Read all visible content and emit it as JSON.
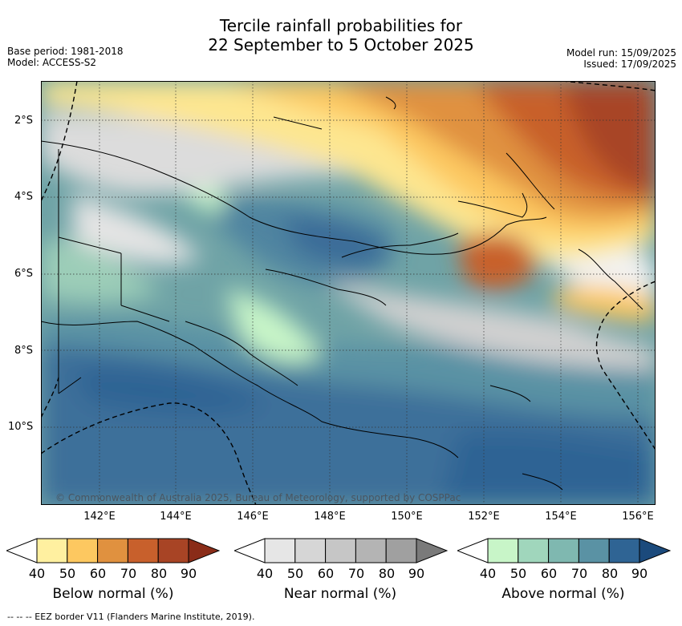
{
  "title_line1": "Tercile rainfall probabilities for",
  "title_line2": "22 September to 5 October 2025",
  "base_period": "Base period: 1981-2018",
  "model": "Model: ACCESS-S2",
  "model_run": "Model run: 15/09/2025",
  "issued": "Issued: 17/09/2025",
  "lat_labels": [
    "2°S",
    "4°S",
    "6°S",
    "8°S",
    "10°S"
  ],
  "lon_labels": [
    "142°E",
    "144°E",
    "146°E",
    "148°E",
    "150°E",
    "152°E",
    "154°E",
    "156°E"
  ],
  "copyright": "© Commonwealth of Australia 2025, Bureau of Meteorology, supported by COSPPac",
  "colorbars": {
    "below": {
      "label": "Below normal (%)",
      "ticks": [
        "40",
        "50",
        "60",
        "70",
        "80",
        "90"
      ],
      "colors": [
        "#fff0a0",
        "#fdc860",
        "#e0913f",
        "#c8602c",
        "#a84425",
        "#8a2c18"
      ]
    },
    "near": {
      "label": "Near normal (%)",
      "ticks": [
        "40",
        "50",
        "60",
        "70",
        "80",
        "90"
      ],
      "colors": [
        "#e6e6e6",
        "#d6d6d6",
        "#c6c6c6",
        "#b4b4b4",
        "#a0a0a0",
        "#7a7a7a"
      ]
    },
    "above": {
      "label": "Above normal (%)",
      "ticks": [
        "40",
        "50",
        "60",
        "70",
        "80",
        "90"
      ],
      "colors": [
        "#c8f5c8",
        "#a0d6bc",
        "#7fb8b0",
        "#5a92a4",
        "#2f6494",
        "#1b4a7c"
      ]
    }
  },
  "footer": "--  --  -- EEZ border V11 (Flanders Marine Institute, 2019)."
}
